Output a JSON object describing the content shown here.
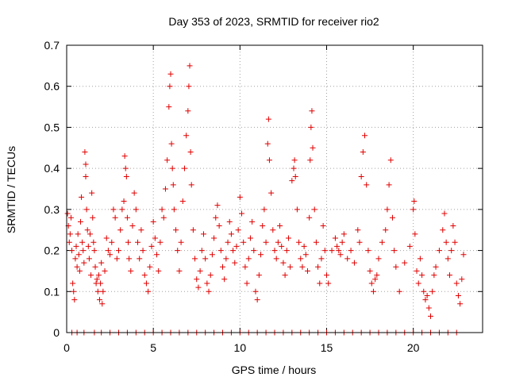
{
  "chart_data": {
    "type": "scatter",
    "title": "Day 353 of 2023, SRMTID for receiver rio2",
    "xlabel": "GPS time / hours",
    "ylabel": "SRMTID / TECUs",
    "xlim": [
      0,
      24
    ],
    "ylim": [
      0,
      0.7
    ],
    "xticks": [
      0,
      5,
      10,
      15,
      20
    ],
    "xtick_labels": [
      "0",
      "5",
      "10",
      "15",
      "20"
    ],
    "yticks": [
      0,
      0.1,
      0.2,
      0.3,
      0.4,
      0.5,
      0.6,
      0.7
    ],
    "ytick_labels": [
      "0",
      "0.1",
      "0.2",
      "0.3",
      "0.4",
      "0.5",
      "0.6",
      "0.7"
    ],
    "grid": true,
    "marker": "+",
    "color": "#e00000",
    "series": [
      {
        "name": "rio2",
        "points": [
          [
            0.05,
            0.29
          ],
          [
            0.1,
            0.26
          ],
          [
            0.15,
            0.22
          ],
          [
            0.2,
            0.24
          ],
          [
            0.25,
            0.28
          ],
          [
            0.3,
            0.2
          ],
          [
            0.35,
            0.12
          ],
          [
            0.4,
            0.1
          ],
          [
            0.45,
            0.08
          ],
          [
            0.5,
            0.18
          ],
          [
            0.55,
            0.21
          ],
          [
            0.6,
            0.16
          ],
          [
            0.65,
            0.24
          ],
          [
            0.7,
            0.19
          ],
          [
            0.75,
            0.15
          ],
          [
            0.8,
            0.27
          ],
          [
            0.85,
            0.33
          ],
          [
            0.9,
            0.22
          ],
          [
            0.95,
            0.2
          ],
          [
            1.0,
            0.17
          ],
          [
            1.05,
            0.44
          ],
          [
            1.1,
            0.41
          ],
          [
            1.1,
            0.38
          ],
          [
            1.15,
            0.3
          ],
          [
            1.2,
            0.25
          ],
          [
            1.25,
            0.21
          ],
          [
            1.3,
            0.18
          ],
          [
            1.35,
            0.24
          ],
          [
            1.4,
            0.14
          ],
          [
            1.45,
            0.34
          ],
          [
            1.5,
            0.28
          ],
          [
            1.55,
            0.22
          ],
          [
            1.6,
            0.2
          ],
          [
            1.65,
            0.16
          ],
          [
            1.7,
            0.12
          ],
          [
            1.75,
            0.13
          ],
          [
            1.8,
            0.1
          ],
          [
            1.85,
            0.14
          ],
          [
            1.9,
            0.08
          ],
          [
            1.95,
            0.12
          ],
          [
            2.0,
            0.17
          ],
          [
            2.05,
            0.07
          ],
          [
            2.1,
            0.1
          ],
          [
            2.2,
            0.15
          ],
          [
            2.3,
            0.23
          ],
          [
            2.4,
            0.2
          ],
          [
            2.5,
            0.19
          ],
          [
            2.6,
            0.22
          ],
          [
            2.7,
            0.3
          ],
          [
            2.8,
            0.28
          ],
          [
            2.9,
            0.18
          ],
          [
            3.0,
            0.2
          ],
          [
            3.1,
            0.25
          ],
          [
            3.2,
            0.3
          ],
          [
            3.3,
            0.32
          ],
          [
            3.35,
            0.43
          ],
          [
            3.4,
            0.4
          ],
          [
            3.45,
            0.38
          ],
          [
            3.5,
            0.28
          ],
          [
            3.55,
            0.22
          ],
          [
            3.6,
            0.18
          ],
          [
            3.7,
            0.15
          ],
          [
            3.8,
            0.26
          ],
          [
            3.9,
            0.34
          ],
          [
            4.0,
            0.3
          ],
          [
            4.1,
            0.22
          ],
          [
            4.2,
            0.18
          ],
          [
            4.3,
            0.25
          ],
          [
            4.4,
            0.2
          ],
          [
            4.5,
            0.14
          ],
          [
            4.6,
            0.12
          ],
          [
            4.7,
            0.1
          ],
          [
            4.8,
            0.16
          ],
          [
            4.9,
            0.21
          ],
          [
            5.0,
            0.27
          ],
          [
            5.1,
            0.23
          ],
          [
            5.2,
            0.19
          ],
          [
            5.3,
            0.15
          ],
          [
            5.4,
            0.22
          ],
          [
            5.5,
            0.3
          ],
          [
            5.6,
            0.28
          ],
          [
            5.7,
            0.35
          ],
          [
            5.8,
            0.42
          ],
          [
            5.9,
            0.55
          ],
          [
            5.95,
            0.6
          ],
          [
            6.0,
            0.63
          ],
          [
            6.05,
            0.46
          ],
          [
            6.1,
            0.4
          ],
          [
            6.15,
            0.36
          ],
          [
            6.2,
            0.3
          ],
          [
            6.3,
            0.25
          ],
          [
            6.4,
            0.2
          ],
          [
            6.5,
            0.15
          ],
          [
            6.6,
            0.22
          ],
          [
            6.7,
            0.32
          ],
          [
            6.8,
            0.4
          ],
          [
            6.9,
            0.48
          ],
          [
            7.0,
            0.54
          ],
          [
            7.05,
            0.6
          ],
          [
            7.1,
            0.65
          ],
          [
            7.15,
            0.44
          ],
          [
            7.2,
            0.36
          ],
          [
            7.3,
            0.25
          ],
          [
            7.4,
            0.18
          ],
          [
            7.5,
            0.13
          ],
          [
            7.6,
            0.11
          ],
          [
            7.7,
            0.15
          ],
          [
            7.8,
            0.2
          ],
          [
            7.9,
            0.24
          ],
          [
            8.0,
            0.18
          ],
          [
            8.1,
            0.12
          ],
          [
            8.2,
            0.1
          ],
          [
            8.3,
            0.14
          ],
          [
            8.4,
            0.19
          ],
          [
            8.5,
            0.23
          ],
          [
            8.6,
            0.28
          ],
          [
            8.7,
            0.31
          ],
          [
            8.8,
            0.26
          ],
          [
            8.9,
            0.2
          ],
          [
            9.0,
            0.16
          ],
          [
            9.1,
            0.13
          ],
          [
            9.2,
            0.18
          ],
          [
            9.3,
            0.22
          ],
          [
            9.4,
            0.27
          ],
          [
            9.5,
            0.24
          ],
          [
            9.6,
            0.2
          ],
          [
            9.7,
            0.17
          ],
          [
            9.8,
            0.21
          ],
          [
            9.9,
            0.25
          ],
          [
            10.0,
            0.33
          ],
          [
            10.1,
            0.29
          ],
          [
            10.2,
            0.22
          ],
          [
            10.3,
            0.16
          ],
          [
            10.4,
            0.12
          ],
          [
            10.5,
            0.18
          ],
          [
            10.6,
            0.23
          ],
          [
            10.7,
            0.27
          ],
          [
            10.8,
            0.2
          ],
          [
            10.9,
            0.1
          ],
          [
            11.0,
            0.08
          ],
          [
            11.1,
            0.14
          ],
          [
            11.2,
            0.19
          ],
          [
            11.3,
            0.26
          ],
          [
            11.4,
            0.3
          ],
          [
            11.5,
            0.22
          ],
          [
            11.6,
            0.46
          ],
          [
            11.65,
            0.52
          ],
          [
            11.7,
            0.42
          ],
          [
            11.8,
            0.34
          ],
          [
            11.9,
            0.25
          ],
          [
            12.0,
            0.2
          ],
          [
            12.1,
            0.18
          ],
          [
            12.2,
            0.22
          ],
          [
            12.3,
            0.26
          ],
          [
            12.4,
            0.21
          ],
          [
            12.5,
            0.17
          ],
          [
            12.6,
            0.14
          ],
          [
            12.7,
            0.2
          ],
          [
            12.8,
            0.23
          ],
          [
            12.9,
            0.16
          ],
          [
            13.0,
            0.37
          ],
          [
            13.1,
            0.4
          ],
          [
            13.15,
            0.42
          ],
          [
            13.2,
            0.38
          ],
          [
            13.3,
            0.3
          ],
          [
            13.4,
            0.22
          ],
          [
            13.5,
            0.18
          ],
          [
            13.6,
            0.16
          ],
          [
            13.7,
            0.21
          ],
          [
            13.8,
            0.19
          ],
          [
            13.9,
            0.15
          ],
          [
            14.0,
            0.28
          ],
          [
            14.05,
            0.42
          ],
          [
            14.1,
            0.5
          ],
          [
            14.15,
            0.54
          ],
          [
            14.2,
            0.45
          ],
          [
            14.3,
            0.3
          ],
          [
            14.4,
            0.22
          ],
          [
            14.5,
            0.16
          ],
          [
            14.6,
            0.12
          ],
          [
            14.7,
            0.18
          ],
          [
            14.8,
            0.26
          ],
          [
            14.9,
            0.2
          ],
          [
            15.0,
            0.14
          ],
          [
            15.1,
            0.12
          ],
          [
            15.3,
            0.2
          ],
          [
            15.5,
            0.23
          ],
          [
            15.6,
            0.21
          ],
          [
            15.7,
            0.2
          ],
          [
            15.8,
            0.19
          ],
          [
            15.9,
            0.22
          ],
          [
            16.0,
            0.24
          ],
          [
            16.2,
            0.18
          ],
          [
            16.4,
            0.2
          ],
          [
            16.6,
            0.17
          ],
          [
            16.8,
            0.25
          ],
          [
            16.9,
            0.22
          ],
          [
            17.0,
            0.38
          ],
          [
            17.1,
            0.44
          ],
          [
            17.2,
            0.48
          ],
          [
            17.3,
            0.36
          ],
          [
            17.4,
            0.2
          ],
          [
            17.5,
            0.15
          ],
          [
            17.6,
            0.12
          ],
          [
            17.7,
            0.1
          ],
          [
            17.8,
            0.13
          ],
          [
            17.9,
            0.14
          ],
          [
            18.0,
            0.18
          ],
          [
            18.2,
            0.22
          ],
          [
            18.4,
            0.25
          ],
          [
            18.5,
            0.3
          ],
          [
            18.6,
            0.36
          ],
          [
            18.7,
            0.42
          ],
          [
            18.8,
            0.28
          ],
          [
            18.9,
            0.2
          ],
          [
            19.0,
            0.16
          ],
          [
            19.2,
            0.1
          ],
          [
            19.5,
            0.17
          ],
          [
            19.8,
            0.21
          ],
          [
            20.0,
            0.3
          ],
          [
            20.05,
            0.32
          ],
          [
            20.1,
            0.24
          ],
          [
            20.2,
            0.15
          ],
          [
            20.3,
            0.12
          ],
          [
            20.4,
            0.18
          ],
          [
            20.5,
            0.14
          ],
          [
            20.6,
            0.1
          ],
          [
            20.7,
            0.08
          ],
          [
            20.8,
            0.09
          ],
          [
            20.9,
            0.06
          ],
          [
            21.0,
            0.04
          ],
          [
            21.1,
            0.1
          ],
          [
            21.2,
            0.14
          ],
          [
            21.3,
            0.16
          ],
          [
            21.5,
            0.2
          ],
          [
            21.7,
            0.25
          ],
          [
            21.8,
            0.29
          ],
          [
            21.9,
            0.22
          ],
          [
            22.0,
            0.18
          ],
          [
            22.1,
            0.14
          ],
          [
            22.2,
            0.2
          ],
          [
            22.3,
            0.26
          ],
          [
            22.4,
            0.22
          ],
          [
            22.5,
            0.12
          ],
          [
            22.6,
            0.09
          ],
          [
            22.7,
            0.07
          ],
          [
            22.8,
            0.13
          ],
          [
            22.9,
            0.19
          ],
          [
            0.3,
            0.0
          ],
          [
            0.6,
            0.0
          ],
          [
            1.0,
            0.0
          ],
          [
            1.6,
            0.0
          ],
          [
            2.0,
            0.0
          ],
          [
            2.5,
            0.0
          ],
          [
            3.0,
            0.0
          ],
          [
            3.5,
            0.0
          ],
          [
            4.0,
            0.0
          ],
          [
            4.5,
            0.0
          ],
          [
            5.0,
            0.0
          ],
          [
            5.5,
            0.0
          ],
          [
            6.0,
            0.0
          ],
          [
            6.5,
            0.0
          ],
          [
            7.0,
            0.0
          ],
          [
            7.5,
            0.0
          ],
          [
            8.0,
            0.0
          ],
          [
            8.5,
            0.0
          ],
          [
            9.0,
            0.0
          ],
          [
            9.5,
            0.0
          ],
          [
            10.0,
            0.0
          ],
          [
            10.5,
            0.0
          ],
          [
            11.0,
            0.0
          ],
          [
            11.5,
            0.0
          ],
          [
            12.0,
            0.0
          ],
          [
            12.5,
            0.0
          ],
          [
            13.0,
            0.0
          ],
          [
            13.5,
            0.0
          ],
          [
            14.0,
            0.0
          ],
          [
            14.5,
            0.0
          ],
          [
            15.0,
            0.0
          ],
          [
            15.5,
            0.0
          ],
          [
            16.0,
            0.0
          ],
          [
            16.5,
            0.0
          ],
          [
            17.0,
            0.0
          ],
          [
            17.5,
            0.0
          ],
          [
            18.0,
            0.0
          ],
          [
            18.5,
            0.0
          ],
          [
            19.0,
            0.0
          ],
          [
            19.5,
            0.0
          ],
          [
            20.0,
            0.0
          ],
          [
            20.5,
            0.0
          ],
          [
            21.0,
            0.0
          ],
          [
            21.5,
            0.0
          ],
          [
            22.0,
            0.0
          ],
          [
            22.5,
            0.0
          ]
        ]
      }
    ]
  }
}
